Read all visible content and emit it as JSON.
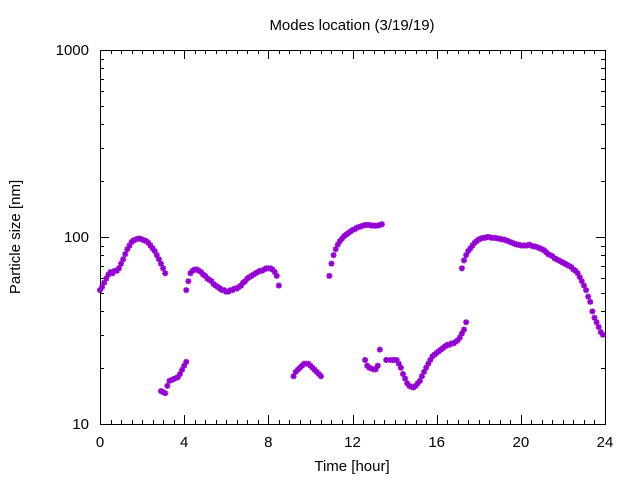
{
  "chart_data": {
    "type": "scatter",
    "title": "Modes location (3/19/19)",
    "xlabel": "Time [hour]",
    "ylabel": "Particle size [nm]",
    "xlim": [
      0,
      24
    ],
    "ylim": [
      10,
      1000
    ],
    "y_scale": "log",
    "grid": false,
    "legend": "none",
    "marker_color": "#9400d3",
    "marker": "star",
    "x_ticks": [
      0,
      4,
      8,
      12,
      16,
      20,
      24
    ],
    "x_tick_labels": [
      "0",
      "4",
      "8",
      "12",
      "16",
      "20",
      "24"
    ],
    "y_ticks": [
      10,
      100,
      1000
    ],
    "y_tick_labels": [
      "10",
      "100",
      "1000"
    ],
    "series": [
      {
        "points": [
          [
            0.0,
            52
          ],
          [
            0.1,
            54
          ],
          [
            0.2,
            57
          ],
          [
            0.3,
            60
          ],
          [
            0.4,
            63
          ],
          [
            0.5,
            65
          ],
          [
            0.6,
            64
          ],
          [
            0.7,
            66
          ],
          [
            0.8,
            66
          ],
          [
            0.9,
            68
          ],
          [
            1.0,
            72
          ],
          [
            1.1,
            76
          ],
          [
            1.2,
            81
          ],
          [
            1.3,
            86
          ],
          [
            1.4,
            90
          ],
          [
            1.5,
            94
          ],
          [
            1.6,
            96
          ],
          [
            1.7,
            97
          ],
          [
            1.8,
            98
          ],
          [
            1.9,
            98
          ],
          [
            2.0,
            97
          ],
          [
            2.1,
            96
          ],
          [
            2.2,
            95
          ],
          [
            2.3,
            93
          ],
          [
            2.4,
            90
          ],
          [
            2.5,
            87
          ],
          [
            2.6,
            84
          ],
          [
            2.7,
            80
          ],
          [
            2.8,
            76
          ],
          [
            2.9,
            72
          ],
          [
            3.0,
            68
          ],
          [
            3.1,
            64
          ],
          [
            2.9,
            15
          ],
          [
            3.0,
            14.8
          ],
          [
            3.1,
            14.6
          ],
          [
            3.2,
            16
          ],
          [
            3.3,
            17
          ],
          [
            3.4,
            17.2
          ],
          [
            3.5,
            17.4
          ],
          [
            3.6,
            17.6
          ],
          [
            3.7,
            17.8
          ],
          [
            3.8,
            18.5
          ],
          [
            3.9,
            19.5
          ],
          [
            4.0,
            20.5
          ],
          [
            4.1,
            21.5
          ],
          [
            4.1,
            52
          ],
          [
            4.2,
            58
          ],
          [
            4.3,
            64
          ],
          [
            4.4,
            66
          ],
          [
            4.5,
            67
          ],
          [
            4.6,
            67
          ],
          [
            4.7,
            66
          ],
          [
            4.8,
            65
          ],
          [
            4.9,
            63
          ],
          [
            5.0,
            62
          ],
          [
            5.1,
            60
          ],
          [
            5.2,
            59
          ],
          [
            5.3,
            58
          ],
          [
            5.4,
            56
          ],
          [
            5.5,
            55
          ],
          [
            5.6,
            54
          ],
          [
            5.7,
            53
          ],
          [
            5.8,
            52
          ],
          [
            5.9,
            52
          ],
          [
            6.0,
            51
          ],
          [
            6.1,
            51
          ],
          [
            6.2,
            52
          ],
          [
            6.3,
            52
          ],
          [
            6.4,
            53
          ],
          [
            6.5,
            53
          ],
          [
            6.6,
            54
          ],
          [
            6.7,
            55
          ],
          [
            6.8,
            57
          ],
          [
            6.9,
            58
          ],
          [
            7.0,
            60
          ],
          [
            7.1,
            61
          ],
          [
            7.2,
            62
          ],
          [
            7.3,
            63
          ],
          [
            7.4,
            64
          ],
          [
            7.5,
            65
          ],
          [
            7.6,
            66
          ],
          [
            7.7,
            66
          ],
          [
            7.8,
            67
          ],
          [
            7.9,
            68
          ],
          [
            8.0,
            68
          ],
          [
            8.1,
            68
          ],
          [
            8.2,
            67
          ],
          [
            8.3,
            65
          ],
          [
            8.4,
            62
          ],
          [
            8.5,
            55
          ],
          [
            9.2,
            18
          ],
          [
            9.3,
            19
          ],
          [
            9.4,
            19.5
          ],
          [
            9.5,
            20
          ],
          [
            9.6,
            20.5
          ],
          [
            9.7,
            21
          ],
          [
            9.8,
            21
          ],
          [
            9.9,
            21
          ],
          [
            10.0,
            20.5
          ],
          [
            10.1,
            20
          ],
          [
            10.2,
            19.5
          ],
          [
            10.3,
            19
          ],
          [
            10.4,
            18.5
          ],
          [
            10.5,
            18
          ],
          [
            10.9,
            62
          ],
          [
            11.0,
            72
          ],
          [
            11.1,
            80
          ],
          [
            11.2,
            86
          ],
          [
            11.3,
            91
          ],
          [
            11.4,
            95
          ],
          [
            11.5,
            98
          ],
          [
            11.6,
            101
          ],
          [
            11.7,
            103
          ],
          [
            11.8,
            105
          ],
          [
            11.9,
            107
          ],
          [
            12.0,
            109
          ],
          [
            12.1,
            110
          ],
          [
            12.2,
            112
          ],
          [
            12.3,
            113
          ],
          [
            12.4,
            114
          ],
          [
            12.5,
            115
          ],
          [
            12.6,
            116
          ],
          [
            12.7,
            116
          ],
          [
            12.8,
            116
          ],
          [
            12.9,
            115
          ],
          [
            13.0,
            115
          ],
          [
            13.1,
            115
          ],
          [
            13.2,
            115
          ],
          [
            13.3,
            116
          ],
          [
            13.4,
            117
          ],
          [
            12.6,
            22
          ],
          [
            12.7,
            20.5
          ],
          [
            12.8,
            20
          ],
          [
            12.9,
            19.8
          ],
          [
            13.0,
            19.6
          ],
          [
            13.1,
            19.6
          ],
          [
            13.2,
            20.5
          ],
          [
            13.3,
            25
          ],
          [
            13.6,
            22
          ],
          [
            13.8,
            22
          ],
          [
            13.9,
            22
          ],
          [
            14.0,
            22
          ],
          [
            14.1,
            22
          ],
          [
            14.2,
            21
          ],
          [
            14.3,
            20
          ],
          [
            14.4,
            18.5
          ],
          [
            14.5,
            17.5
          ],
          [
            14.6,
            16.5
          ],
          [
            14.7,
            16
          ],
          [
            14.8,
            15.8
          ],
          [
            14.9,
            15.7
          ],
          [
            15.0,
            16
          ],
          [
            15.1,
            16.5
          ],
          [
            15.2,
            17
          ],
          [
            15.3,
            18
          ],
          [
            15.4,
            19
          ],
          [
            15.5,
            20
          ],
          [
            15.6,
            21
          ],
          [
            15.7,
            22
          ],
          [
            15.8,
            23
          ],
          [
            15.9,
            23.5
          ],
          [
            16.0,
            24
          ],
          [
            16.1,
            24.5
          ],
          [
            16.2,
            25
          ],
          [
            16.3,
            25.5
          ],
          [
            16.4,
            26
          ],
          [
            16.5,
            26.5
          ],
          [
            16.6,
            26.5
          ],
          [
            16.7,
            27
          ],
          [
            16.8,
            27
          ],
          [
            16.9,
            27.5
          ],
          [
            17.0,
            28
          ],
          [
            17.1,
            29
          ],
          [
            17.2,
            30.5
          ],
          [
            17.3,
            32
          ],
          [
            17.4,
            35
          ],
          [
            17.2,
            68
          ],
          [
            17.3,
            75
          ],
          [
            17.4,
            80
          ],
          [
            17.5,
            84
          ],
          [
            17.6,
            87
          ],
          [
            17.7,
            90
          ],
          [
            17.8,
            93
          ],
          [
            17.9,
            95
          ],
          [
            18.0,
            97
          ],
          [
            18.1,
            98
          ],
          [
            18.2,
            99
          ],
          [
            18.3,
            99
          ],
          [
            18.4,
            100
          ],
          [
            18.5,
            100
          ],
          [
            18.6,
            99
          ],
          [
            18.7,
            99
          ],
          [
            18.8,
            99
          ],
          [
            18.9,
            98
          ],
          [
            19.0,
            98
          ],
          [
            19.1,
            97
          ],
          [
            19.2,
            97
          ],
          [
            19.3,
            96
          ],
          [
            19.4,
            95
          ],
          [
            19.5,
            94
          ],
          [
            19.6,
            93
          ],
          [
            19.7,
            92
          ],
          [
            19.8,
            91
          ],
          [
            19.9,
            91
          ],
          [
            20.0,
            90
          ],
          [
            20.1,
            90
          ],
          [
            20.2,
            90
          ],
          [
            20.3,
            90
          ],
          [
            20.4,
            91
          ],
          [
            20.5,
            90
          ],
          [
            20.6,
            89
          ],
          [
            20.7,
            89
          ],
          [
            20.8,
            88
          ],
          [
            20.9,
            87
          ],
          [
            21.0,
            86
          ],
          [
            21.1,
            85
          ],
          [
            21.2,
            83
          ],
          [
            21.3,
            81
          ],
          [
            21.4,
            80
          ],
          [
            21.5,
            79
          ],
          [
            21.6,
            77
          ],
          [
            21.7,
            76
          ],
          [
            21.8,
            75
          ],
          [
            21.9,
            74
          ],
          [
            22.0,
            73
          ],
          [
            22.1,
            72
          ],
          [
            22.2,
            71
          ],
          [
            22.3,
            70
          ],
          [
            22.4,
            69
          ],
          [
            22.5,
            67
          ],
          [
            22.6,
            66
          ],
          [
            22.7,
            64
          ],
          [
            22.8,
            61
          ],
          [
            22.9,
            58
          ],
          [
            23.0,
            55
          ],
          [
            23.1,
            52
          ],
          [
            23.2,
            48
          ],
          [
            23.3,
            45
          ],
          [
            23.4,
            40
          ],
          [
            23.5,
            37
          ],
          [
            23.6,
            35
          ],
          [
            23.7,
            33
          ],
          [
            23.8,
            31
          ],
          [
            23.9,
            30
          ]
        ]
      }
    ]
  }
}
